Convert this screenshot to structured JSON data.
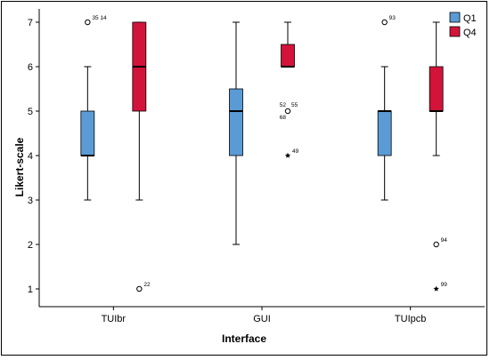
{
  "chart_data": {
    "type": "box",
    "xlabel": "Interface",
    "ylabel": "Likert-scale",
    "ylim": [
      0.6,
      7.3
    ],
    "yticks": [
      1,
      2,
      3,
      4,
      5,
      6,
      7
    ],
    "grid": false,
    "legend_position": "top-right",
    "categories": [
      "TUIbr",
      "GUI",
      "TUIpcb"
    ],
    "series": [
      {
        "name": "Q1",
        "color": "#5b9bd5",
        "boxes": [
          {
            "whisker_low": 3,
            "q1": 4,
            "median": 4,
            "q3": 5,
            "whisker_high": 6,
            "outliers": [
              {
                "value": 7,
                "marker": "circle",
                "label": "35 14"
              }
            ]
          },
          {
            "whisker_low": 2,
            "q1": 4,
            "median": 5,
            "q3": 5.5,
            "whisker_high": 7,
            "outliers": []
          },
          {
            "whisker_low": 3,
            "q1": 4,
            "median": 5,
            "q3": 5,
            "whisker_high": 6,
            "outliers": [
              {
                "value": 7,
                "marker": "circle",
                "label": "93"
              }
            ]
          }
        ]
      },
      {
        "name": "Q4",
        "color": "#d2143a",
        "boxes": [
          {
            "whisker_low": 3,
            "q1": 5,
            "median": 6,
            "q3": 7,
            "whisker_high": 7,
            "outliers": [
              {
                "value": 1,
                "marker": "circle",
                "label": "22"
              }
            ]
          },
          {
            "whisker_low": 6,
            "q1": 6,
            "median": 6,
            "q3": 6.5,
            "whisker_high": 7,
            "outliers": [
              {
                "value": 5,
                "marker": "circle",
                "label": "52 55",
                "label2": "68"
              },
              {
                "value": 4,
                "marker": "star",
                "label": "49"
              }
            ]
          },
          {
            "whisker_low": 4,
            "q1": 5,
            "median": 5,
            "q3": 6,
            "whisker_high": 7,
            "outliers": [
              {
                "value": 2,
                "marker": "circle",
                "label": "94"
              },
              {
                "value": 1,
                "marker": "star",
                "label": "99"
              }
            ]
          }
        ]
      }
    ]
  }
}
